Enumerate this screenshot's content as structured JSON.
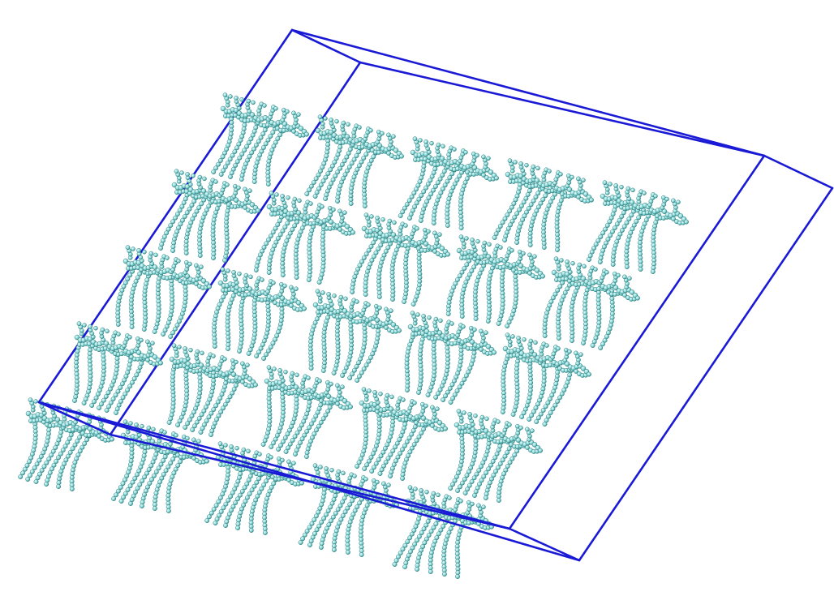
{
  "scene": {
    "colors": {
      "background": "#ffffff",
      "box_edge": "#1a1ad6",
      "atom_fill": "#8fdada",
      "atom_shade": "#2f8080",
      "atom_highlight": "#e6fbfb"
    },
    "grid": {
      "rows": 5,
      "columns": 5,
      "count": 25
    }
  }
}
